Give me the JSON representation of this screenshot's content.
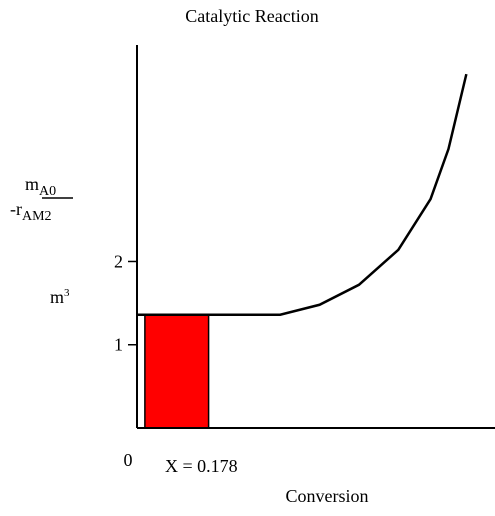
{
  "chart_data": {
    "type": "line",
    "title": "Catalytic Reaction",
    "y_label": {
      "numerator": "m",
      "numerator_sub": "A0",
      "denominator": "-r",
      "denominator_sub": "AM2"
    },
    "y_unit": {
      "base": "m",
      "sup": "3"
    },
    "x_label": "Conversion",
    "annotation": "X = 0.178",
    "xlim": [
      0,
      1
    ],
    "xticks": [
      0
    ],
    "ylim": [
      0,
      4.6
    ],
    "yticks": [
      1,
      2
    ],
    "series": [
      {
        "color": "#000000",
        "x": [
          0,
          0.2,
          0.4,
          0.51,
          0.62,
          0.73,
          0.82,
          0.87,
          0.92
        ],
        "values": [
          1.36,
          1.36,
          1.36,
          1.48,
          1.72,
          2.14,
          2.75,
          3.35,
          4.25
        ]
      }
    ],
    "rectangle": {
      "x": [
        0.022,
        0.2
      ],
      "value": 1.36,
      "color": "#ff0000"
    }
  }
}
